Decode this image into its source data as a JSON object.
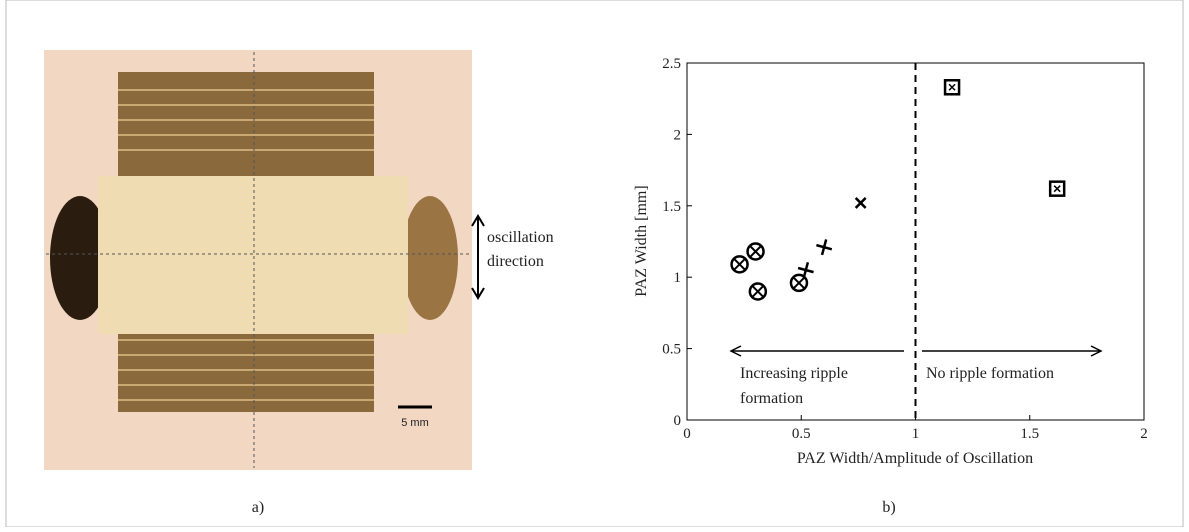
{
  "figure": {
    "photo": {
      "direction_label": [
        "oscillation",
        "direction"
      ],
      "scale_label": "5 mm"
    },
    "captions": [
      "a)",
      "b)"
    ]
  },
  "chart_data": {
    "type": "scatter",
    "xlabel": "PAZ Width/Amplitude of Oscillation",
    "ylabel": "PAZ Width [mm]",
    "xlim": [
      0,
      2
    ],
    "xticks": [
      0,
      0.5,
      1,
      1.5,
      2
    ],
    "ylim": [
      0,
      2.5
    ],
    "yticks": [
      0,
      0.5,
      1,
      1.5,
      2,
      2.5
    ],
    "vline_x": 1,
    "series": [
      {
        "marker": "circle-x",
        "color": "#000000",
        "x": [
          0.23,
          0.3,
          0.31,
          0.49
        ],
        "values": [
          1.09,
          1.18,
          0.9,
          0.96
        ]
      },
      {
        "marker": "plus",
        "color": "#000000",
        "x": [
          0.52,
          0.6
        ],
        "values": [
          1.05,
          1.21
        ]
      },
      {
        "marker": "x",
        "color": "#000000",
        "x": [
          0.76
        ],
        "values": [
          1.52
        ]
      },
      {
        "marker": "square-dot",
        "color": "#000000",
        "x": [
          1.16,
          1.62
        ],
        "values": [
          2.33,
          1.62
        ]
      }
    ],
    "annotations": [
      {
        "lines": [
          "Increasing ripple",
          "formation"
        ]
      },
      {
        "lines": [
          "No ripple formation"
        ]
      }
    ]
  }
}
